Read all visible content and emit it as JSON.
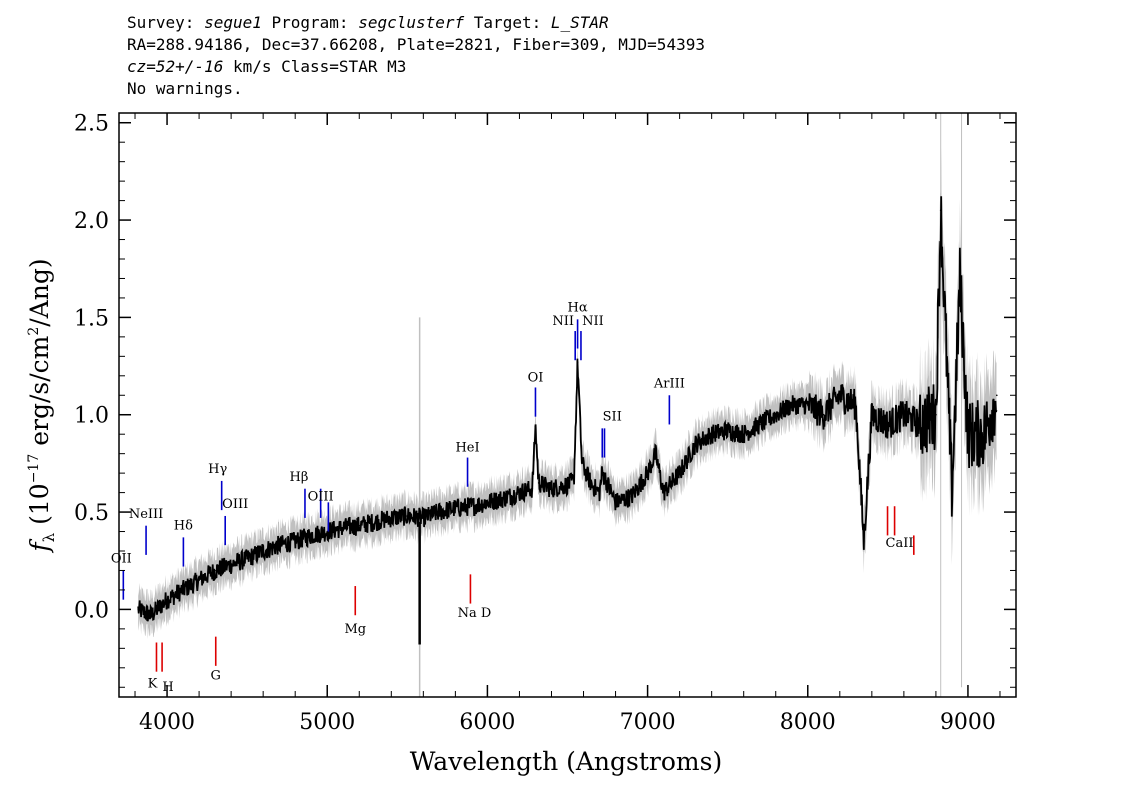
{
  "header": {
    "survey_label": "Survey: ",
    "survey": "segue1",
    "program_label": " Program: ",
    "program": "segclusterf",
    "target_label": " Target: ",
    "target": "L_STAR",
    "line2": "RA=288.94186, Dec=37.66208, Plate=2821, Fiber=309, MJD=54393",
    "cz": "cz=52+/-16",
    "line3_rest": " km/s Class=STAR M3",
    "line4": "No warnings."
  },
  "colors": {
    "spectrum": "#000000",
    "error_band": "#c0c0c0",
    "emission_marker": "#0000cc",
    "absorption_marker": "#dd0000"
  },
  "chart_data": {
    "type": "line",
    "xlabel": "Wavelength (Angstroms)",
    "ylabel": "f_λ (10^-17 erg/s/cm^2/Ang)",
    "xlim": [
      3700,
      9300
    ],
    "ylim": [
      -0.45,
      2.55
    ],
    "x_ticks": [
      4000,
      5000,
      6000,
      7000,
      8000,
      9000
    ],
    "y_ticks": [
      0.0,
      0.5,
      1.0,
      1.5,
      2.0,
      2.5
    ],
    "x_tick_labels": [
      "4000",
      "5000",
      "6000",
      "7000",
      "8000",
      "9000"
    ],
    "y_tick_labels": [
      "0.0",
      "0.5",
      "1.0",
      "1.5",
      "2.0",
      "2.5"
    ],
    "series": [
      {
        "x": [
          3820,
          3900,
          4000,
          4100,
          4200,
          4300,
          4400,
          4500,
          4600,
          4700,
          4800,
          4900,
          5000,
          5100,
          5200,
          5300,
          5400,
          5500,
          5600,
          5700,
          5800,
          5900,
          6000,
          6100,
          6200,
          6280,
          6300,
          6320,
          6400,
          6500,
          6540,
          6563,
          6590,
          6650,
          6700,
          6716,
          6731,
          6800,
          6900,
          7000,
          7050,
          7100,
          7200,
          7300,
          7400,
          7500,
          7600,
          7700,
          7800,
          7900,
          8000,
          8100,
          8200,
          8300,
          8350,
          8400,
          8500,
          8600,
          8700,
          8800,
          8830,
          8900,
          8950,
          9000,
          9100,
          9180
        ],
        "y": [
          0.0,
          -0.03,
          0.05,
          0.1,
          0.15,
          0.2,
          0.23,
          0.26,
          0.3,
          0.33,
          0.35,
          0.38,
          0.4,
          0.42,
          0.43,
          0.45,
          0.47,
          0.48,
          0.47,
          0.5,
          0.52,
          0.53,
          0.55,
          0.57,
          0.6,
          0.62,
          0.94,
          0.65,
          0.62,
          0.64,
          0.66,
          1.27,
          0.75,
          0.64,
          0.6,
          0.7,
          0.68,
          0.55,
          0.58,
          0.7,
          0.8,
          0.6,
          0.7,
          0.85,
          0.9,
          0.92,
          0.9,
          0.95,
          1.0,
          1.05,
          1.05,
          1.0,
          1.1,
          1.05,
          0.35,
          1.0,
          0.95,
          1.0,
          0.95,
          1.0,
          2.05,
          0.6,
          1.7,
          0.9,
          0.9,
          1.1
        ]
      }
    ],
    "spike_5577": {
      "x": 5577,
      "y": -0.18
    },
    "emission_lines": [
      {
        "label": "OII",
        "wave": 3727
      },
      {
        "label": "NeIII",
        "wave": 3869
      },
      {
        "label": "Hδ",
        "wave": 4102
      },
      {
        "label": "Hγ",
        "wave": 4341
      },
      {
        "label": "OIII",
        "wave": 4363
      },
      {
        "label": "Hβ",
        "wave": 4861
      },
      {
        "label": "OIII",
        "wave": 4959
      },
      {
        "label": "OIII",
        "wave": 5007
      },
      {
        "label": "HeI",
        "wave": 5876
      },
      {
        "label": "OI",
        "wave": 6300
      },
      {
        "label": "NII",
        "wave": 6548
      },
      {
        "label": "Hα",
        "wave": 6563
      },
      {
        "label": "NII",
        "wave": 6584
      },
      {
        "label": "SII",
        "wave": 6717
      },
      {
        "label": "SII",
        "wave": 6731
      },
      {
        "label": "ArIII",
        "wave": 7136
      }
    ],
    "absorption_lines": [
      {
        "label": "K",
        "wave": 3934
      },
      {
        "label": "H",
        "wave": 3969
      },
      {
        "label": "G",
        "wave": 4304
      },
      {
        "label": "Mg",
        "wave": 5175
      },
      {
        "label": "Na",
        "wave": 5894
      },
      {
        "label": "D",
        "wave": 5896
      },
      {
        "label": "CaII",
        "wave": 8498
      },
      {
        "label": "CaII",
        "wave": 8542
      },
      {
        "label": "CaII",
        "wave": 8662
      }
    ],
    "line_labels": {
      "OII": "OII",
      "NeIII": "NeIII",
      "Hdelta": "Hδ",
      "Hgamma": "Hγ",
      "OIII_a": "OIII",
      "Hbeta": "Hβ",
      "OIII_b": "OIII",
      "HeI": "HeI",
      "OI": "OI",
      "NII_a": "NII",
      "Halpha": "Hα",
      "NII_b": "NII",
      "SII": "SII",
      "ArIII": "ArIII",
      "K": "K",
      "H": "H",
      "G": "G",
      "Mg": "Mg",
      "NaD": "Na  D",
      "CaII": "CaII"
    }
  }
}
